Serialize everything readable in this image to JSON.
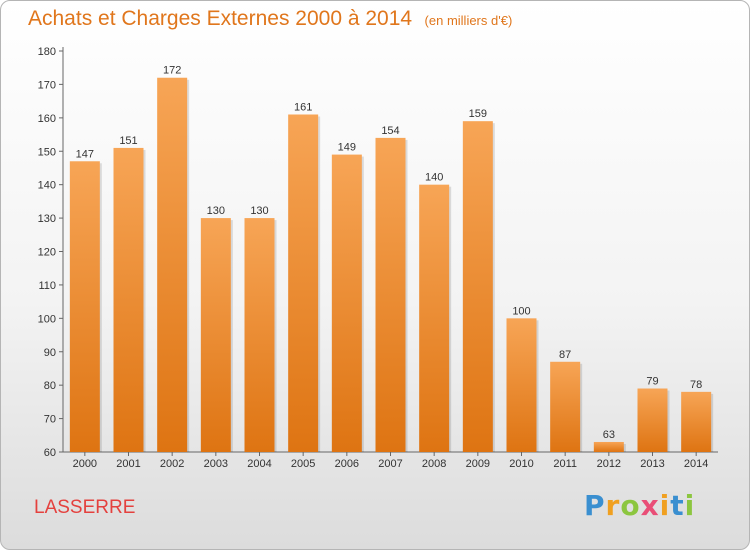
{
  "chart_data": {
    "type": "bar",
    "title": "Achats et Charges Externes 2000 à 2014",
    "unit_label": "(en milliers d'€)",
    "categories": [
      "2000",
      "2001",
      "2002",
      "2003",
      "2004",
      "2005",
      "2006",
      "2007",
      "2008",
      "2009",
      "2010",
      "2011",
      "2012",
      "2013",
      "2014"
    ],
    "values": [
      147,
      151,
      172,
      130,
      130,
      161,
      149,
      154,
      140,
      159,
      100,
      87,
      63,
      79,
      78
    ],
    "ylim": [
      60,
      180
    ],
    "yticks": [
      60,
      70,
      80,
      90,
      100,
      110,
      120,
      130,
      140,
      150,
      160,
      170,
      180
    ],
    "grid": false,
    "legend": "none",
    "xlabel": "",
    "ylabel": "",
    "bar_color_top": "#f7a556",
    "bar_color_bottom": "#de7412"
  },
  "place_name": "LASSERRE",
  "brand": {
    "text": "Proxiti",
    "letters": [
      {
        "ch": "P",
        "color": "#3a8fd0"
      },
      {
        "ch": "r",
        "color": "#f0a020"
      },
      {
        "ch": "o",
        "color": "#8cc63f"
      },
      {
        "ch": "x",
        "color": "#e94e77"
      },
      {
        "ch": "i",
        "color": "#f0a020"
      },
      {
        "ch": "t",
        "color": "#3a8fd0"
      },
      {
        "ch": "i",
        "color": "#8cc63f"
      }
    ]
  }
}
